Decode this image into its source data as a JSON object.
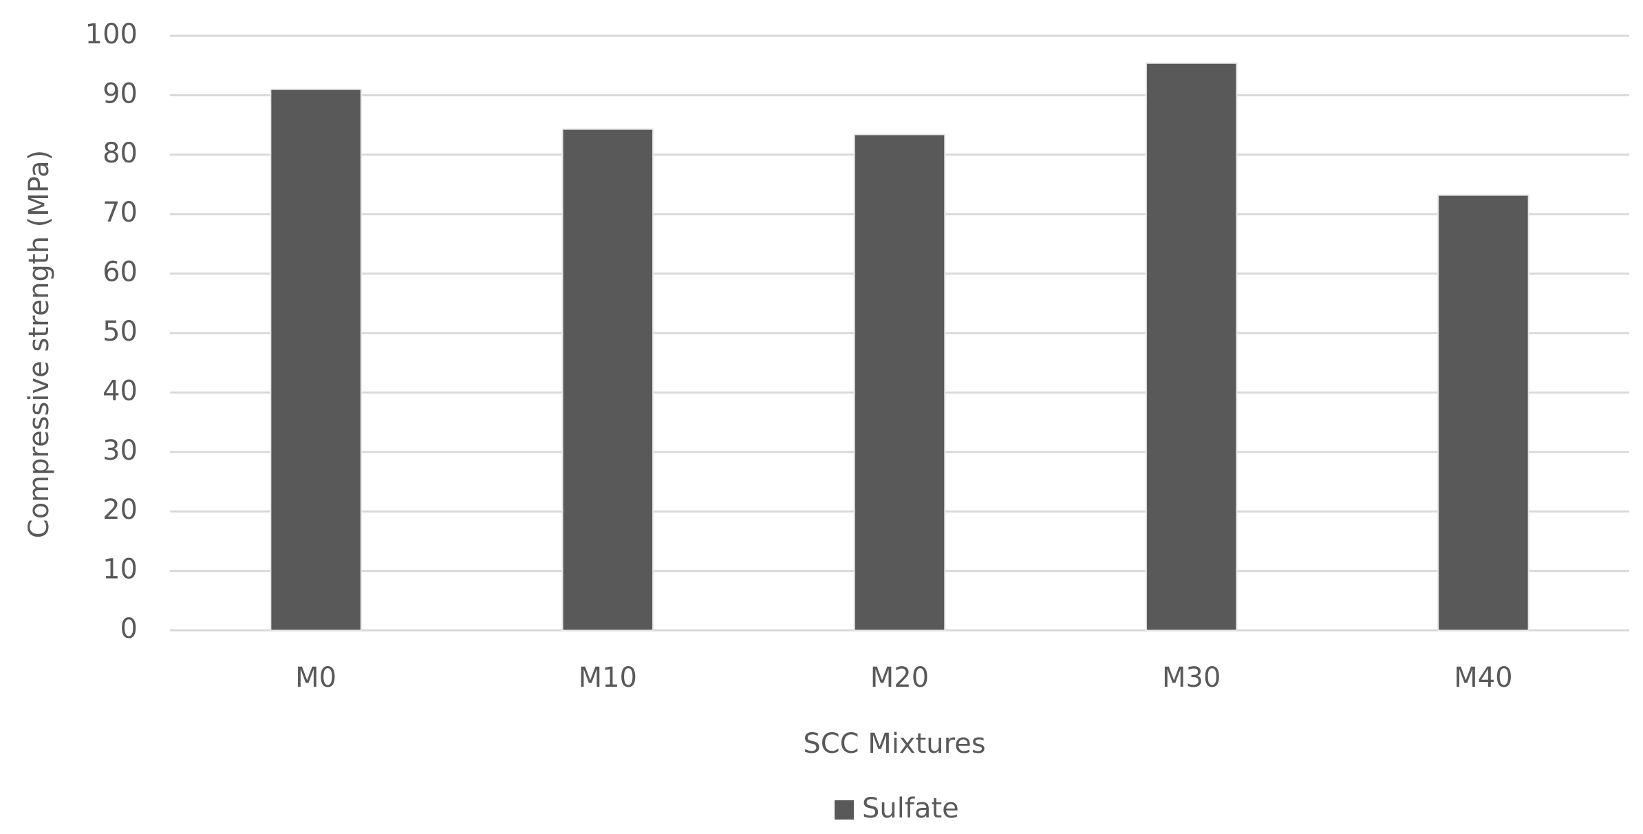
{
  "chart_data": {
    "type": "bar",
    "x_label": "SCC Mixtures",
    "y_label": "Compressive strength (MPa)",
    "categories": [
      "M0",
      "M10",
      "M20",
      "M30",
      "M40"
    ],
    "series": [
      {
        "name": "Sulfate",
        "color": "#595959",
        "values": [
          91,
          84.3,
          83.4,
          95.4,
          73.2
        ]
      }
    ],
    "ylim": [
      0,
      100
    ],
    "yticks": [
      0,
      10,
      20,
      30,
      40,
      50,
      60,
      70,
      80,
      90,
      100
    ],
    "grid": true,
    "legend": "bottom"
  }
}
